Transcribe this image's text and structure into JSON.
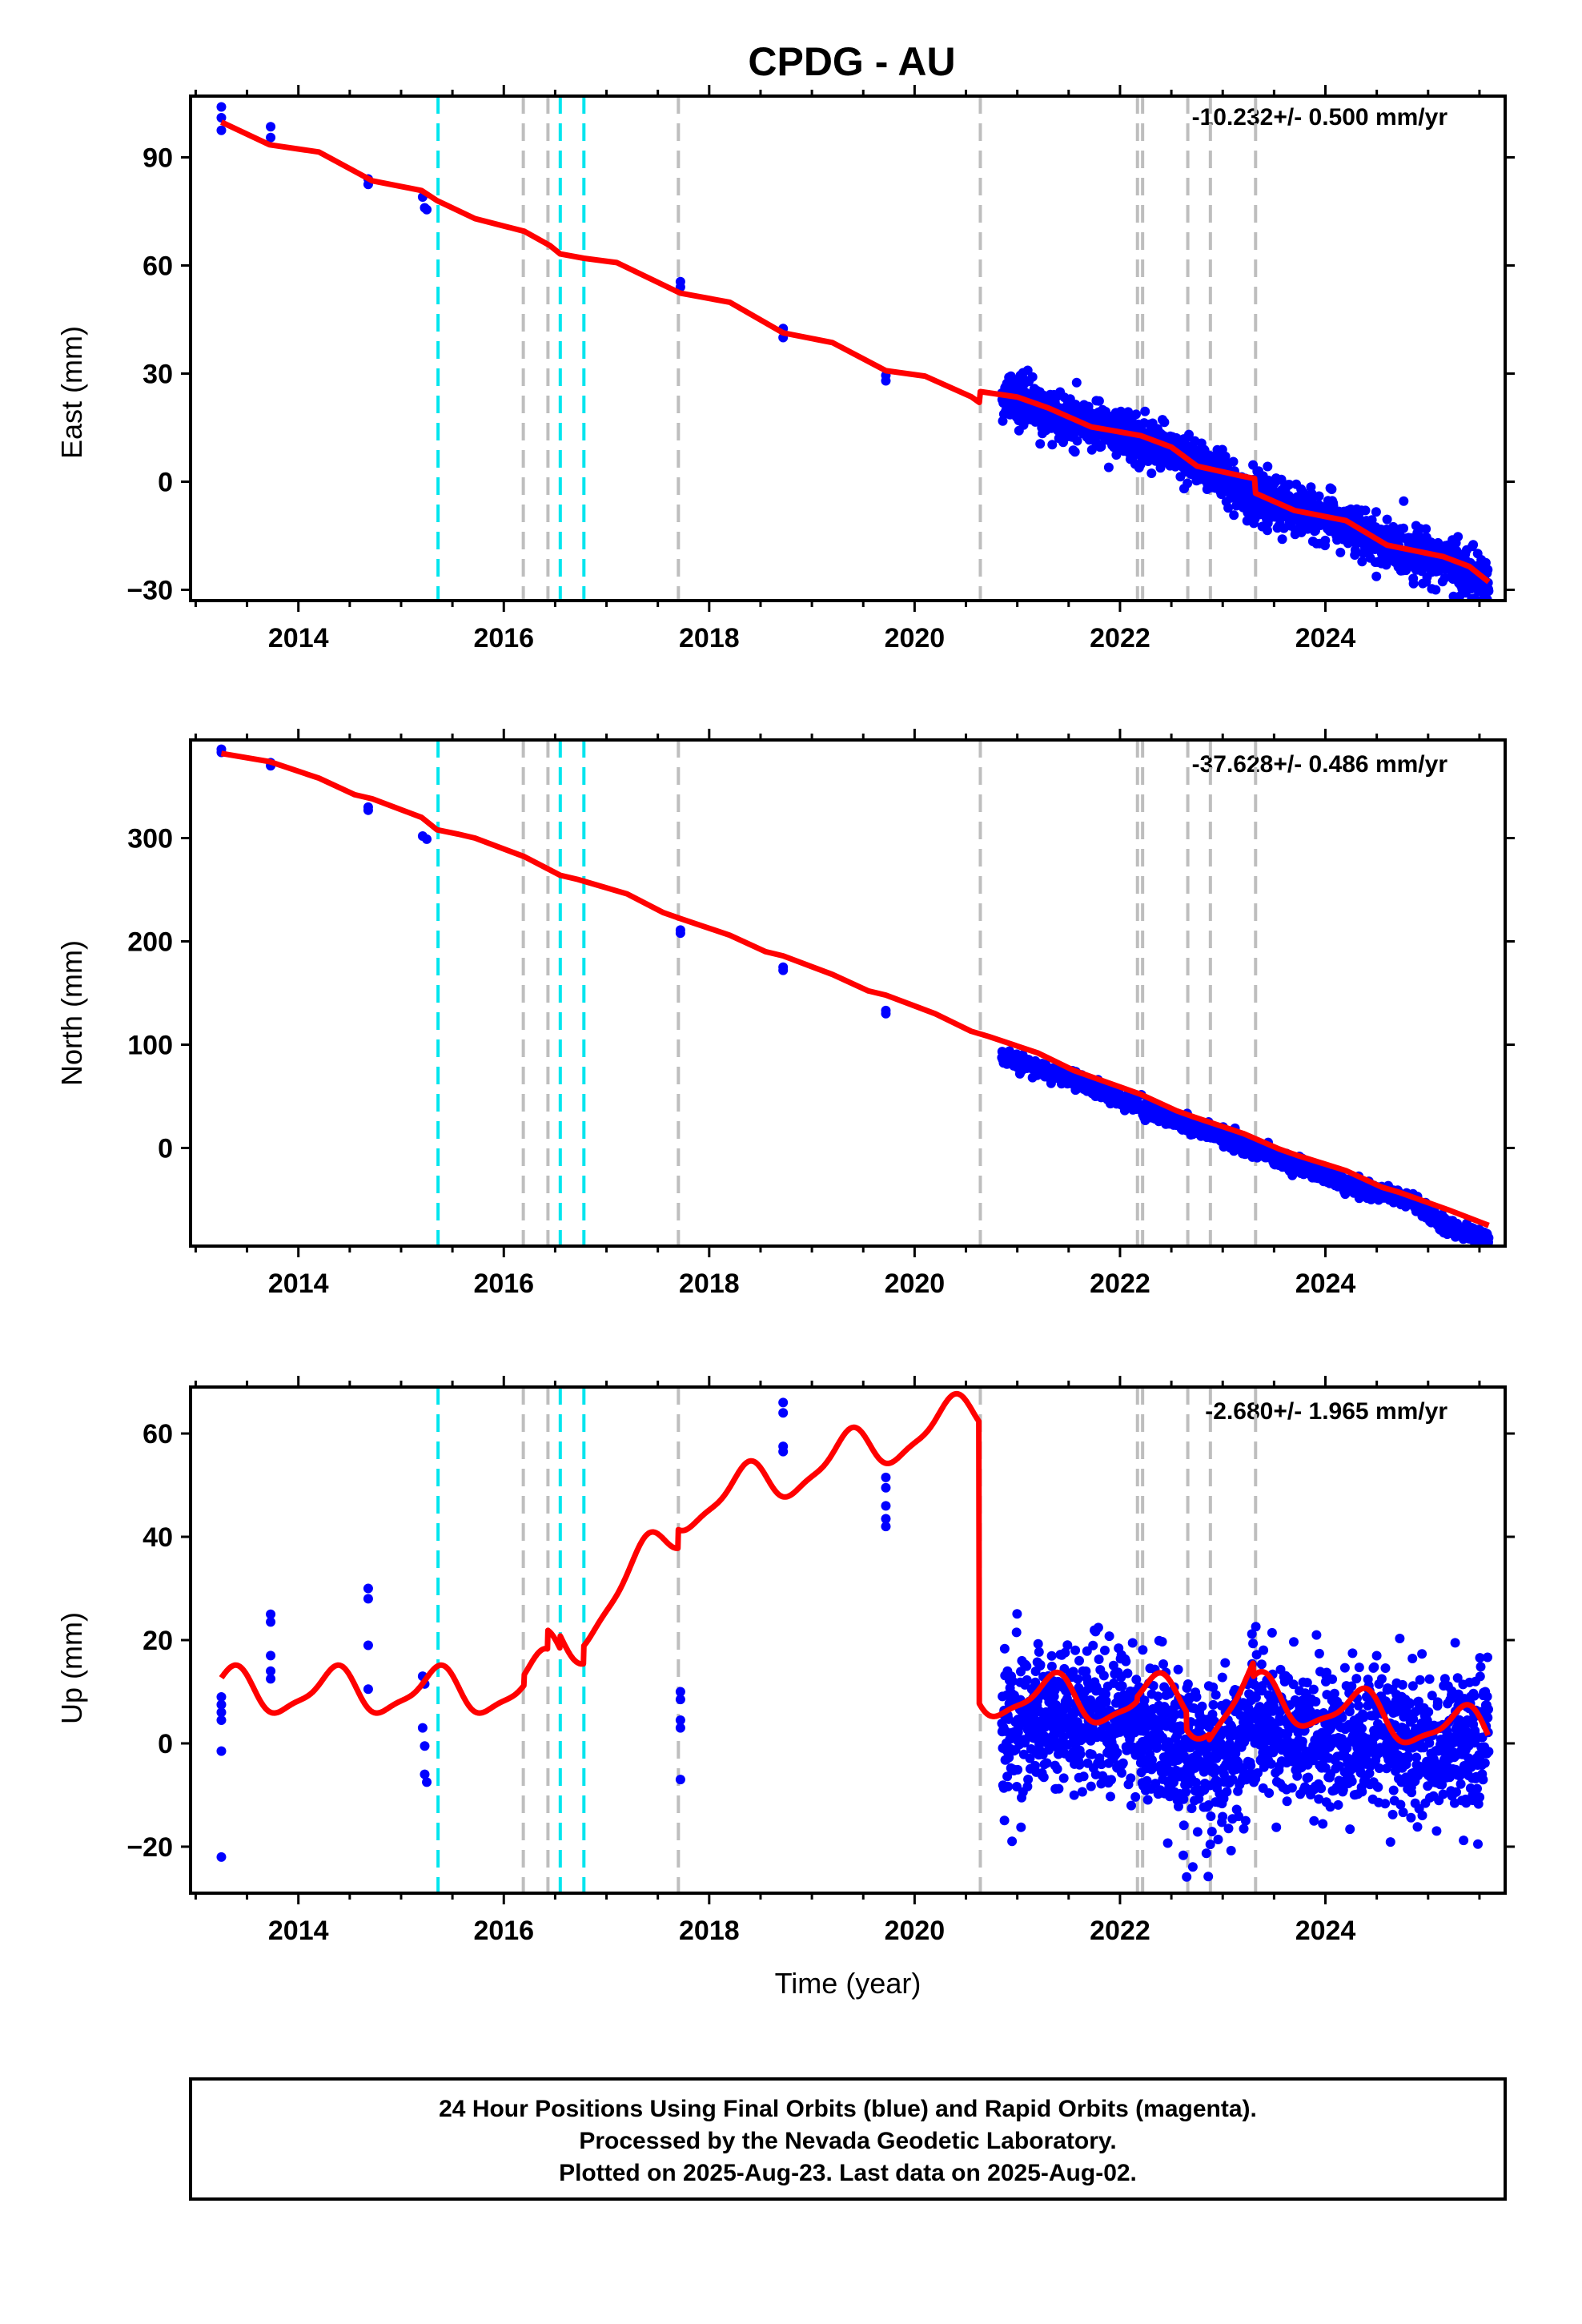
{
  "title": "CPDG - AU",
  "footer": {
    "line1": "24 Hour Positions Using Final Orbits (blue) and Rapid Orbits (magenta).",
    "line2": "Processed by the Nevada Geodetic Laboratory.",
    "line3": "Plotted on 2025-Aug-23. Last data on 2025-Aug-02."
  },
  "colors": {
    "data_points": "#0000ff",
    "model": "#ff0000",
    "equipment_change": "#00e5ee",
    "earthquake": "#bebebe"
  },
  "chart_data": [
    {
      "type": "scatter",
      "panel": "east",
      "ylabel": "East (mm)",
      "rate_label": "-10.232+/- 0.500 mm/yr",
      "xlim": [
        2012.95,
        2025.75
      ],
      "ylim": [
        -33,
        107
      ],
      "yticks": [
        -30,
        0,
        30,
        60,
        90
      ],
      "xticks": [
        2014,
        2016,
        2018,
        2020,
        2022,
        2024
      ],
      "grid": false,
      "series": [
        {
          "kind": "points",
          "early_points": [
            [
              2013.25,
              104
            ],
            [
              2013.25,
              101
            ],
            [
              2013.25,
              97.5
            ],
            [
              2013.73,
              98.5
            ],
            [
              2013.73,
              95.5
            ],
            [
              2014.68,
              84
            ],
            [
              2014.68,
              82.5
            ],
            [
              2015.21,
              79
            ],
            [
              2015.23,
              76
            ],
            [
              2015.25,
              75.5
            ],
            [
              2017.72,
              55.5
            ],
            [
              2017.72,
              54
            ],
            [
              2018.72,
              42.5
            ],
            [
              2018.72,
              40
            ],
            [
              2019.72,
              29.5
            ],
            [
              2019.72,
              28
            ]
          ],
          "dense_segment": {
            "start": 2020.85,
            "end": 2025.59,
            "trend": [
              [
                2020.85,
                24.5
              ],
              [
                2021.5,
                18
              ],
              [
                2022.3,
                10
              ],
              [
                2023.0,
                2
              ],
              [
                2023.3,
                -5
              ],
              [
                2024.0,
                -10
              ],
              [
                2024.6,
                -18
              ],
              [
                2025.2,
                -22
              ],
              [
                2025.59,
                -29
              ]
            ],
            "scatter": 3.2
          }
        },
        {
          "kind": "model",
          "points": [
            [
              2013.25,
              99.8
            ],
            [
              2013.72,
              93.5
            ],
            [
              2014.2,
              91.5
            ],
            [
              2014.72,
              83.5
            ],
            [
              2015.2,
              80.8
            ],
            [
              2015.35,
              78
            ],
            [
              2015.72,
              73
            ],
            [
              2016.2,
              69.5
            ],
            [
              2016.45,
              65.5
            ],
            [
              2016.55,
              63.2
            ],
            [
              2016.78,
              62
            ],
            [
              2017.1,
              60.8
            ],
            [
              2017.72,
              52.3
            ],
            [
              2018.2,
              49.8
            ],
            [
              2018.72,
              41.3
            ],
            [
              2019.2,
              38.6
            ],
            [
              2019.72,
              30.8
            ],
            [
              2020.1,
              29.3
            ],
            [
              2020.55,
              23.6
            ],
            [
              2020.63,
              22
            ],
            [
              2020.64,
              25
            ],
            [
              2021.0,
              23.5
            ],
            [
              2021.3,
              20.5
            ],
            [
              2021.72,
              15.2
            ],
            [
              2022.2,
              12.8
            ],
            [
              2022.5,
              9.6
            ],
            [
              2022.75,
              4.3
            ],
            [
              2023.2,
              1.5
            ],
            [
              2023.31,
              0.9
            ],
            [
              2023.32,
              -3.2
            ],
            [
              2023.7,
              -8
            ],
            [
              2024.2,
              -10.8
            ],
            [
              2024.6,
              -17.6
            ],
            [
              2025.15,
              -20.8
            ],
            [
              2025.4,
              -23.5
            ],
            [
              2025.59,
              -27.8
            ]
          ]
        }
      ]
    },
    {
      "type": "scatter",
      "panel": "north",
      "ylabel": "North (mm)",
      "rate_label": "-37.628+/- 0.486 mm/yr",
      "xlim": [
        2012.95,
        2025.75
      ],
      "ylim": [
        -95,
        395
      ],
      "yticks": [
        0,
        100,
        200,
        300
      ],
      "xticks": [
        2014,
        2016,
        2018,
        2020,
        2022,
        2024
      ],
      "grid": false,
      "series": [
        {
          "kind": "points",
          "early_points": [
            [
              2013.25,
              386
            ],
            [
              2013.25,
              383
            ],
            [
              2013.73,
              373
            ],
            [
              2013.73,
              370
            ],
            [
              2014.68,
              330
            ],
            [
              2014.68,
              327
            ],
            [
              2015.21,
              302
            ],
            [
              2015.25,
              299
            ],
            [
              2017.72,
              211
            ],
            [
              2017.72,
              208
            ],
            [
              2018.72,
              175
            ],
            [
              2018.72,
              172
            ],
            [
              2019.72,
              133
            ],
            [
              2019.72,
              130
            ]
          ],
          "dense_segment": {
            "start": 2020.85,
            "end": 2025.59,
            "trend": [
              [
                2020.85,
                88
              ],
              [
                2021.5,
                68
              ],
              [
                2022.3,
                36
              ],
              [
                2023.0,
                10
              ],
              [
                2023.5,
                -8
              ],
              [
                2024.2,
                -35
              ],
              [
                2024.8,
                -50
              ],
              [
                2025.2,
                -78
              ],
              [
                2025.59,
                -87
              ]
            ],
            "scatter": 3.5
          }
        },
        {
          "kind": "model",
          "points": [
            [
              2013.25,
              382
            ],
            [
              2013.72,
              374
            ],
            [
              2014.2,
              358
            ],
            [
              2014.55,
              342
            ],
            [
              2014.72,
              338
            ],
            [
              2015.2,
              320
            ],
            [
              2015.35,
              308
            ],
            [
              2015.55,
              304
            ],
            [
              2015.72,
              300
            ],
            [
              2016.2,
              282
            ],
            [
              2016.55,
              264
            ],
            [
              2016.72,
              260
            ],
            [
              2017.2,
              246
            ],
            [
              2017.55,
              228
            ],
            [
              2017.72,
              222
            ],
            [
              2018.2,
              206
            ],
            [
              2018.55,
              190
            ],
            [
              2018.72,
              186
            ],
            [
              2019.2,
              168
            ],
            [
              2019.55,
              152
            ],
            [
              2019.72,
              148
            ],
            [
              2020.2,
              130
            ],
            [
              2020.55,
              113
            ],
            [
              2020.72,
              108
            ],
            [
              2021.2,
              92
            ],
            [
              2021.55,
              75
            ],
            [
              2021.72,
              69
            ],
            [
              2022.2,
              52
            ],
            [
              2022.55,
              36
            ],
            [
              2022.72,
              30
            ],
            [
              2023.2,
              14
            ],
            [
              2023.55,
              -1
            ],
            [
              2023.72,
              -7
            ],
            [
              2024.2,
              -22
            ],
            [
              2024.55,
              -38
            ],
            [
              2024.72,
              -43
            ],
            [
              2025.2,
              -60
            ],
            [
              2025.59,
              -75
            ]
          ]
        }
      ]
    },
    {
      "type": "scatter",
      "panel": "up",
      "ylabel": "Up (mm)",
      "rate_label": "-2.680+/- 1.965 mm/yr",
      "xlim": [
        2012.95,
        2025.75
      ],
      "ylim": [
        -29,
        69
      ],
      "yticks": [
        -20,
        0,
        20,
        40,
        60
      ],
      "xticks": [
        2014,
        2016,
        2018,
        2020,
        2022,
        2024
      ],
      "grid": false,
      "series": [
        {
          "kind": "points",
          "early_points": [
            [
              2013.25,
              9
            ],
            [
              2013.25,
              7.5
            ],
            [
              2013.25,
              6
            ],
            [
              2013.25,
              4.5
            ],
            [
              2013.25,
              -1.5
            ],
            [
              2013.25,
              -22
            ],
            [
              2013.73,
              25
            ],
            [
              2013.73,
              23.5
            ],
            [
              2013.73,
              17
            ],
            [
              2013.73,
              14
            ],
            [
              2013.73,
              12.5
            ],
            [
              2014.68,
              30
            ],
            [
              2014.68,
              28
            ],
            [
              2014.68,
              19
            ],
            [
              2014.68,
              10.5
            ],
            [
              2015.21,
              13
            ],
            [
              2015.23,
              11.5
            ],
            [
              2015.21,
              3
            ],
            [
              2015.23,
              -0.5
            ],
            [
              2015.23,
              -6
            ],
            [
              2015.25,
              -7.5
            ],
            [
              2017.72,
              10
            ],
            [
              2017.72,
              8.5
            ],
            [
              2017.72,
              4.5
            ],
            [
              2017.72,
              3
            ],
            [
              2017.72,
              -7
            ],
            [
              2018.72,
              66
            ],
            [
              2018.72,
              64
            ],
            [
              2018.72,
              57.5
            ],
            [
              2018.72,
              56.5
            ],
            [
              2019.72,
              51.5
            ],
            [
              2019.72,
              49.5
            ],
            [
              2019.72,
              46
            ],
            [
              2019.72,
              43.5
            ],
            [
              2019.72,
              42
            ]
          ],
          "dense_segment": {
            "start": 2020.85,
            "end": 2025.59,
            "trend": [
              [
                2020.85,
                3
              ],
              [
                2021.5,
                5
              ],
              [
                2022.2,
                3
              ],
              [
                2022.7,
                -3
              ],
              [
                2022.9,
                -5
              ],
              [
                2023.4,
                5
              ],
              [
                2024.0,
                0
              ],
              [
                2024.6,
                2
              ],
              [
                2025.0,
                -1
              ],
              [
                2025.59,
                0
              ]
            ],
            "scatter": 7
          }
        },
        {
          "kind": "model",
          "steps": [
            2016.2,
            2016.43,
            2016.55,
            2016.78,
            2017.7,
            2020.63,
            2022.17,
            2022.2,
            2022.65,
            2022.87,
            2023.3
          ]
        }
      ]
    }
  ],
  "events": {
    "equipment_changes": [
      2015.36,
      2016.55,
      2016.78
    ],
    "earthquakes": [
      2016.19,
      2016.43,
      2017.7,
      2020.64,
      2022.17,
      2022.22,
      2022.66,
      2022.88,
      2023.32
    ]
  }
}
